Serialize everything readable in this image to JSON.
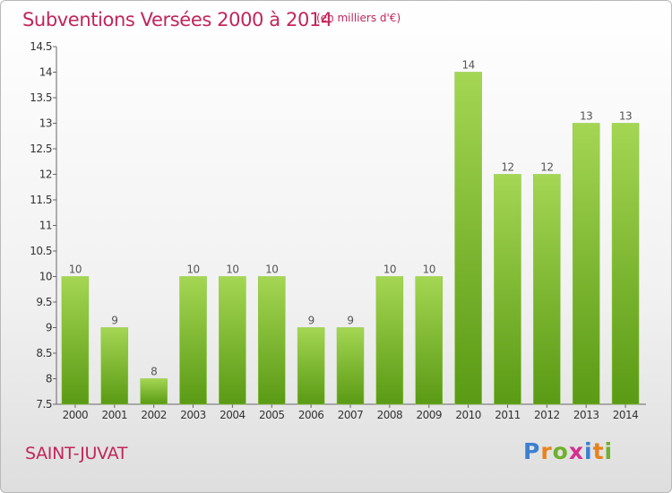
{
  "header": {
    "title": "Subventions Versées 2000 à 2014",
    "subtitle": "(en milliers d'€)"
  },
  "footer": {
    "city": "SAINT-JUVAT",
    "logo_letters": [
      "P",
      "r",
      "o",
      "x",
      "i",
      "t",
      "i"
    ],
    "logo_colors": [
      "#3b7fd1",
      "#e8821c",
      "#6fb02c",
      "#d42f8e",
      "#3b7fd1",
      "#e8821c",
      "#6fb02c"
    ]
  },
  "chart_data": {
    "type": "bar",
    "categories": [
      "2000",
      "2001",
      "2002",
      "2003",
      "2004",
      "2005",
      "2006",
      "2007",
      "2008",
      "2009",
      "2010",
      "2011",
      "2012",
      "2013",
      "2014"
    ],
    "values": [
      10,
      9,
      8,
      10,
      10,
      10,
      9,
      9,
      10,
      10,
      14,
      12,
      12,
      13,
      13
    ],
    "data_labels": [
      "10",
      "9",
      "8",
      "10",
      "10",
      "10",
      "9",
      "9",
      "10",
      "10",
      "14",
      "12",
      "12",
      "13",
      "13"
    ],
    "ylim": [
      7.5,
      14.5
    ],
    "yticks": [
      "7.5",
      "8",
      "8.5",
      "9",
      "9.5",
      "10",
      "10.5",
      "11",
      "11.5",
      "12",
      "12.5",
      "13",
      "13.5",
      "14",
      "14.5"
    ],
    "bar_color_top": "#a4d653",
    "bar_color_bottom": "#5a9a14",
    "label_color": "#555555",
    "grid": false
  }
}
